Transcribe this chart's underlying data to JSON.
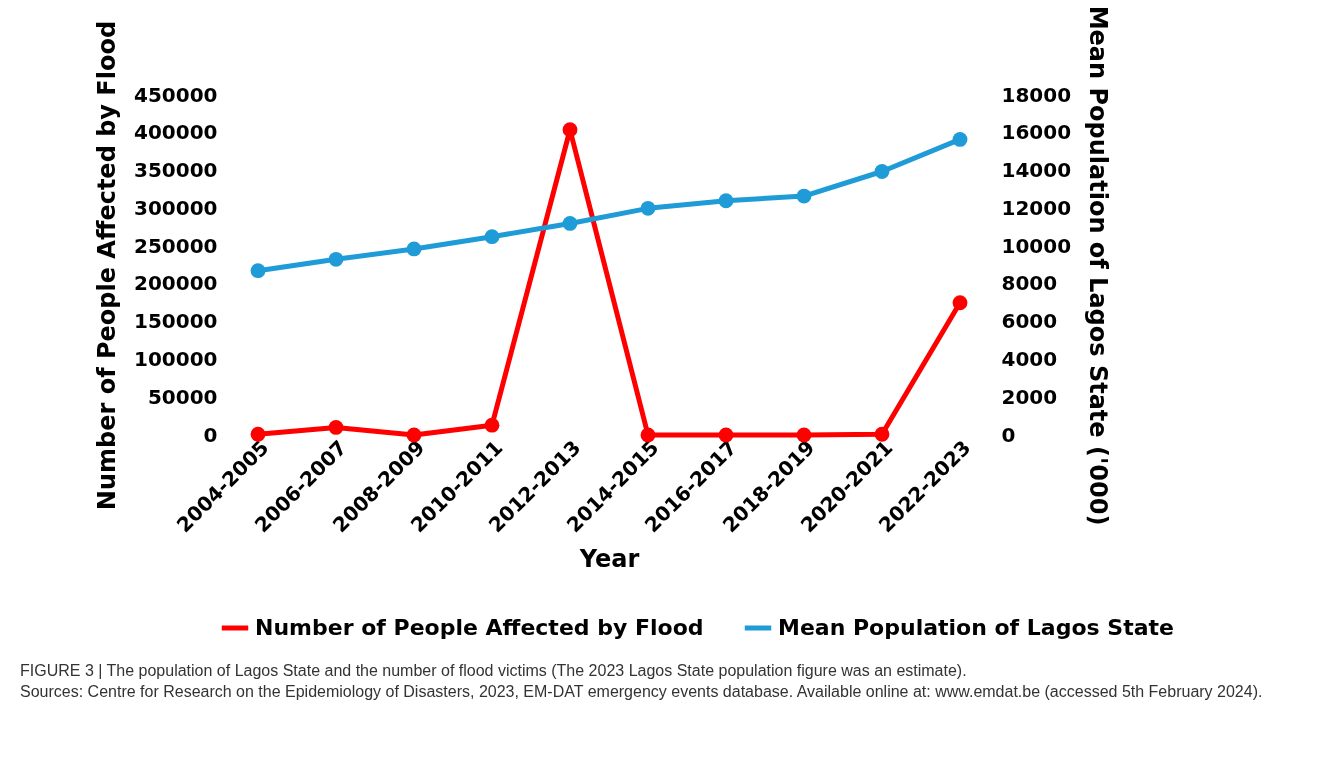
{
  "chart_data": {
    "type": "line",
    "xlabel": "Year",
    "ylabel": "Number of People Affected by Flood",
    "y2label": "Mean Population of Lagos State ('000)",
    "categories": [
      "2004-2005",
      "2006-2007",
      "2008-2009",
      "2010-2011",
      "2012-2013",
      "2014-2015",
      "2016-2017",
      "2018-2019",
      "2020-2021",
      "2022-2023"
    ],
    "series": [
      {
        "name": "Number of People Affected by Flood",
        "color": "#ff0000",
        "values": [
          1000,
          10000,
          0,
          13000,
          404000,
          0,
          0,
          0,
          1000,
          175000
        ]
      },
      {
        "name": "Mean Population of Lagos State",
        "color": "#1f9bd7",
        "axis": "y2",
        "values": [
          8700,
          9300,
          9850,
          10500,
          11200,
          12000,
          12400,
          12650,
          13950,
          15650
        ]
      }
    ],
    "ylim": [
      0,
      450000
    ],
    "yticks": [
      0,
      50000,
      100000,
      150000,
      200000,
      250000,
      300000,
      350000,
      400000,
      450000
    ],
    "y2lim": [
      0,
      18000
    ],
    "y2ticks": [
      0,
      2000,
      4000,
      6000,
      8000,
      10000,
      12000,
      14000,
      16000,
      18000
    ],
    "grid": false,
    "legend": "bottom",
    "marker": "circle",
    "line_style": "solid",
    "annotations": [
      "FIGURE 3 | The population of Lagos State and the number of flood victims (The 2023 Lagos State population figure was an estimate).",
      "Sources: Centre for Research on the Epidemiology of Disasters, 2023, EM-DAT emergency events database. Available online at: www.emdat.be (accessed 5th February 2024)."
    ]
  }
}
